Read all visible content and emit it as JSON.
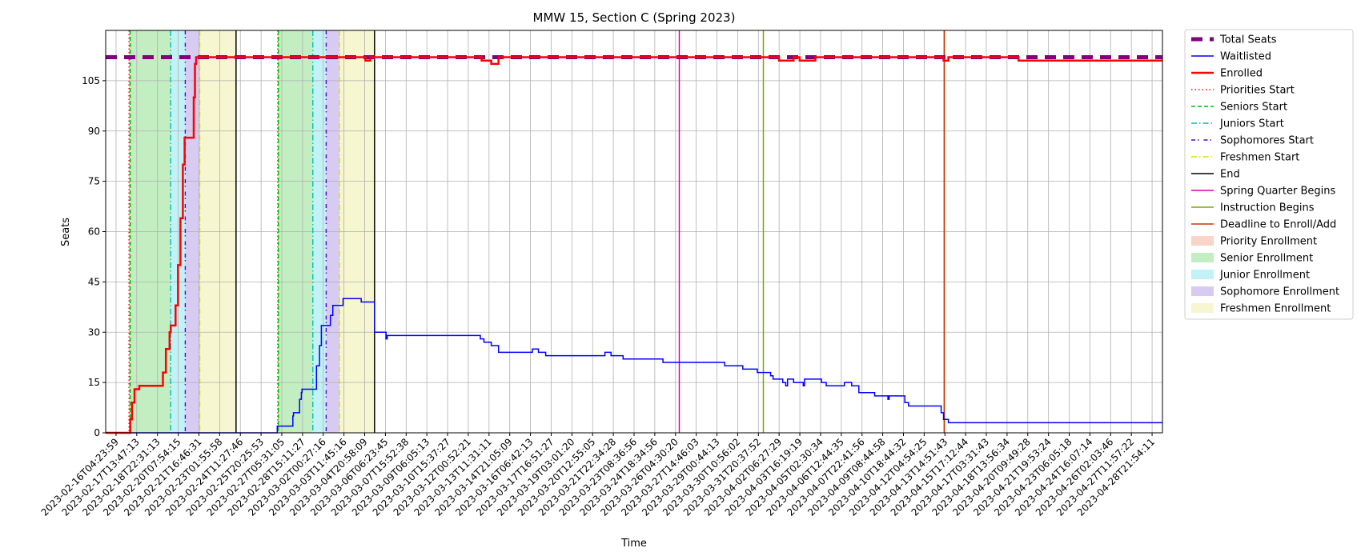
{
  "chart_data": {
    "type": "line",
    "title": "MMW 15, Section C (Spring 2023)",
    "xlabel": "Time",
    "ylabel": "Seats",
    "ylim": [
      0,
      120
    ],
    "yticks": [
      0,
      15,
      30,
      45,
      60,
      75,
      90,
      105
    ],
    "grid": true,
    "legend_position": "outside-right",
    "x_date_range": [
      "2023-02-16T04:23:59",
      "2023-04-29T23:59:00"
    ],
    "x_tick_labels": [
      "2023-02-16T04:23:59",
      "2023-02-17T13:47:13",
      "2023-02-18T22:31:13",
      "2023-02-20T07:54:15",
      "2023-02-21T16:46:31",
      "2023-02-23T01:55:58",
      "2023-02-24T11:27:46",
      "2023-02-25T20:25:53",
      "2023-02-27T05:31:05",
      "2023-02-28T15:11:27",
      "2023-03-02T00:27:16",
      "2023-03-03T11:45:16",
      "2023-03-04T20:58:09",
      "2023-03-06T06:23:45",
      "2023-03-07T15:52:38",
      "2023-03-09T06:05:13",
      "2023-03-10T15:37:27",
      "2023-03-12T00:52:21",
      "2023-03-13T11:31:11",
      "2023-03-14T21:05:09",
      "2023-03-16T06:42:13",
      "2023-03-17T16:51:27",
      "2023-03-19T03:01:20",
      "2023-03-20T12:55:05",
      "2023-03-21T22:34:28",
      "2023-03-23T08:36:56",
      "2023-03-24T18:34:56",
      "2023-03-26T04:30:20",
      "2023-03-27T14:46:03",
      "2023-03-29T00:44:13",
      "2023-03-30T10:56:02",
      "2023-03-31T20:37:52",
      "2023-04-02T06:27:29",
      "2023-04-03T16:19:19",
      "2023-04-05T02:30:34",
      "2023-04-06T12:44:35",
      "2023-04-07T22:41:56",
      "2023-04-09T08:44:58",
      "2023-04-10T18:44:32",
      "2023-04-12T04:54:25",
      "2023-04-13T14:51:43",
      "2023-04-15T17:12:44",
      "2023-04-17T03:31:43",
      "2023-04-18T13:56:34",
      "2023-04-20T09:49:28",
      "2023-04-21T19:53:24",
      "2023-04-23T06:05:18",
      "2023-04-24T16:07:14",
      "2023-04-26T02:03:46",
      "2023-04-27T11:57:22",
      "2023-04-28T21:54:11"
    ],
    "series": [
      {
        "name": "Total Seats",
        "color": "#800080",
        "style": "dashed-thick",
        "points": [
          [
            "2023-02-16T04:23:59",
            112
          ],
          [
            "2023-04-29T23:59:00",
            112
          ]
        ]
      },
      {
        "name": "Waitlisted",
        "color": "#0000ff",
        "style": "solid",
        "points": [
          [
            "2023-02-16T04:23:59",
            0
          ],
          [
            "2023-02-28T00:00:00",
            0
          ],
          [
            "2023-02-28T00:10:00",
            2
          ],
          [
            "2023-02-28T22:00:00",
            2
          ],
          [
            "2023-03-01T02:00:00",
            5
          ],
          [
            "2023-03-01T03:00:00",
            6
          ],
          [
            "2023-03-01T12:00:00",
            6
          ],
          [
            "2023-03-01T13:00:00",
            10
          ],
          [
            "2023-03-01T16:00:00",
            12
          ],
          [
            "2023-03-01T17:00:00",
            13
          ],
          [
            "2023-03-02T16:00:00",
            13
          ],
          [
            "2023-03-02T17:00:00",
            20
          ],
          [
            "2023-03-02T22:00:00",
            26
          ],
          [
            "2023-03-03T01:00:00",
            32
          ],
          [
            "2023-03-03T12:00:00",
            32
          ],
          [
            "2023-03-03T16:00:00",
            35
          ],
          [
            "2023-03-03T20:00:00",
            38
          ],
          [
            "2023-03-04T12:00:00",
            38
          ],
          [
            "2023-03-04T13:00:00",
            40
          ],
          [
            "2023-03-05T18:00:00",
            40
          ],
          [
            "2023-03-05T19:00:00",
            39
          ],
          [
            "2023-03-06T16:00:00",
            39
          ],
          [
            "2023-03-06T17:00:00",
            30
          ],
          [
            "2023-03-07T08:00:00",
            30
          ],
          [
            "2023-03-07T12:00:00",
            28
          ],
          [
            "2023-03-07T14:00:00",
            29
          ],
          [
            "2023-03-13T21:00:00",
            29
          ],
          [
            "2023-03-14T00:00:00",
            28
          ],
          [
            "2023-03-14T06:00:00",
            27
          ],
          [
            "2023-03-14T18:00:00",
            26
          ],
          [
            "2023-03-15T06:00:00",
            24
          ],
          [
            "2023-03-17T12:00:00",
            24
          ],
          [
            "2023-03-17T14:00:00",
            25
          ],
          [
            "2023-03-18T00:00:00",
            24
          ],
          [
            "2023-03-18T12:00:00",
            23
          ],
          [
            "2023-03-22T12:00:00",
            23
          ],
          [
            "2023-03-22T14:00:00",
            24
          ],
          [
            "2023-03-23T00:00:00",
            23
          ],
          [
            "2023-03-23T20:00:00",
            22
          ],
          [
            "2023-03-26T12:00:00",
            22
          ],
          [
            "2023-03-26T14:00:00",
            21
          ],
          [
            "2023-03-30T18:00:00",
            21
          ],
          [
            "2023-03-30T20:00:00",
            20
          ],
          [
            "2023-04-01T00:00:00",
            20
          ],
          [
            "2023-04-01T02:00:00",
            19
          ],
          [
            "2023-04-02T00:00:00",
            19
          ],
          [
            "2023-04-02T02:00:00",
            18
          ],
          [
            "2023-04-03T00:00:00",
            17
          ],
          [
            "2023-04-03T04:00:00",
            16
          ],
          [
            "2023-04-03T20:00:00",
            15
          ],
          [
            "2023-04-04T01:00:00",
            14
          ],
          [
            "2023-04-04T04:00:00",
            16
          ],
          [
            "2023-04-04T14:00:00",
            15
          ],
          [
            "2023-04-05T06:00:00",
            14
          ],
          [
            "2023-04-05T08:00:00",
            16
          ],
          [
            "2023-04-06T12:00:00",
            15
          ],
          [
            "2023-04-06T20:00:00",
            14
          ],
          [
            "2023-04-08T00:00:00",
            14
          ],
          [
            "2023-04-08T02:00:00",
            15
          ],
          [
            "2023-04-08T14:00:00",
            14
          ],
          [
            "2023-04-09T02:00:00",
            12
          ],
          [
            "2023-04-10T02:00:00",
            12
          ],
          [
            "2023-04-10T04:00:00",
            11
          ],
          [
            "2023-04-11T00:00:00",
            11
          ],
          [
            "2023-04-11T02:00:00",
            10
          ],
          [
            "2023-04-11T04:00:00",
            11
          ],
          [
            "2023-04-12T00:00:00",
            11
          ],
          [
            "2023-04-12T06:00:00",
            9
          ],
          [
            "2023-04-12T12:00:00",
            8
          ],
          [
            "2023-04-14T12:00:00",
            8
          ],
          [
            "2023-04-14T18:00:00",
            6
          ],
          [
            "2023-04-14T22:00:00",
            4
          ],
          [
            "2023-04-15T06:00:00",
            3
          ],
          [
            "2023-04-29T23:59:00",
            3
          ]
        ]
      },
      {
        "name": "Enrolled",
        "color": "#ff0000",
        "style": "solid-thick",
        "points": [
          [
            "2023-02-16T04:23:59",
            0
          ],
          [
            "2023-02-17T20:00:00",
            0
          ],
          [
            "2023-02-17T21:00:00",
            4
          ],
          [
            "2023-02-18T00:00:00",
            9
          ],
          [
            "2023-02-18T04:00:00",
            13
          ],
          [
            "2023-02-18T12:00:00",
            14
          ],
          [
            "2023-02-20T00:00:00",
            14
          ],
          [
            "2023-02-20T03:00:00",
            18
          ],
          [
            "2023-02-20T08:00:00",
            25
          ],
          [
            "2023-02-20T14:00:00",
            30
          ],
          [
            "2023-02-20T16:00:00",
            32
          ],
          [
            "2023-02-20T22:00:00",
            32
          ],
          [
            "2023-02-21T00:00:00",
            38
          ],
          [
            "2023-02-21T04:00:00",
            50
          ],
          [
            "2023-02-21T08:00:00",
            64
          ],
          [
            "2023-02-21T12:00:00",
            80
          ],
          [
            "2023-02-21T15:00:00",
            88
          ],
          [
            "2023-02-22T04:00:00",
            88
          ],
          [
            "2023-02-22T06:00:00",
            100
          ],
          [
            "2023-02-22T08:00:00",
            110
          ],
          [
            "2023-02-22T10:00:00",
            112
          ],
          [
            "2023-03-06T00:00:00",
            112
          ],
          [
            "2023-03-06T02:00:00",
            111
          ],
          [
            "2023-03-06T10:00:00",
            112
          ],
          [
            "2023-03-14T00:00:00",
            112
          ],
          [
            "2023-03-14T02:00:00",
            111
          ],
          [
            "2023-03-14T16:00:00",
            111
          ],
          [
            "2023-03-14T18:00:00",
            110
          ],
          [
            "2023-03-15T06:00:00",
            112
          ],
          [
            "2023-04-03T12:00:00",
            112
          ],
          [
            "2023-04-03T14:00:00",
            111
          ],
          [
            "2023-04-04T14:00:00",
            112
          ],
          [
            "2023-04-05T00:00:00",
            111
          ],
          [
            "2023-04-06T00:00:00",
            111
          ],
          [
            "2023-04-06T02:00:00",
            112
          ],
          [
            "2023-04-14T20:00:00",
            112
          ],
          [
            "2023-04-14T22:00:00",
            111
          ],
          [
            "2023-04-15T06:00:00",
            112
          ],
          [
            "2023-04-20T00:00:00",
            112
          ],
          [
            "2023-04-20T02:00:00",
            111
          ],
          [
            "2023-04-29T23:59:00",
            111
          ]
        ]
      }
    ],
    "vertical_markers": [
      {
        "name": "Priorities Start",
        "color": "#ff0000",
        "style": "dotted",
        "x": [
          "2023-02-17T19:00:00",
          "2023-02-28T01:00:00"
        ]
      },
      {
        "name": "Seniors Start",
        "color": "#00bb00",
        "style": "dashed",
        "x": [
          "2023-02-17T21:00:00",
          "2023-02-28T02:00:00"
        ]
      },
      {
        "name": "Juniors Start",
        "color": "#00bfbf",
        "style": "dashdot",
        "x": [
          "2023-02-20T16:00:00",
          "2023-03-02T11:00:00"
        ]
      },
      {
        "name": "Sophomores Start",
        "color": "#5500dd",
        "style": "dashdot-dense",
        "x": [
          "2023-02-21T16:00:00",
          "2023-03-03T09:00:00"
        ]
      },
      {
        "name": "Freshmen Start",
        "color": "#dddd00",
        "style": "dashdot",
        "x": [
          "2023-02-22T16:00:00",
          "2023-03-04T07:00:00"
        ]
      },
      {
        "name": "End",
        "color": "#000000",
        "style": "solid",
        "x": [
          "2023-02-25T04:00:00",
          "2023-03-06T17:00:00"
        ]
      },
      {
        "name": "Spring Quarter Begins",
        "color": "#dd00aa",
        "style": "solid",
        "x": [
          "2023-03-27T17:00:00"
        ]
      },
      {
        "name": "Instruction Begins",
        "color": "#77aa00",
        "style": "solid",
        "x": [
          "2023-04-02T12:00:00"
        ]
      },
      {
        "name": "Deadline to Enroll/Add",
        "color": "#cc3300",
        "style": "solid",
        "x": [
          "2023-04-14T23:00:00"
        ]
      }
    ],
    "spans": [
      {
        "name": "Priority Enrollment",
        "color": "#f4b09a",
        "ranges": [
          [
            "2023-02-17T19:00:00",
            "2023-02-17T21:00:00"
          ],
          [
            "2023-02-28T01:00:00",
            "2023-02-28T02:00:00"
          ]
        ]
      },
      {
        "name": "Senior Enrollment",
        "color": "#90e090",
        "ranges": [
          [
            "2023-02-17T21:00:00",
            "2023-02-20T16:00:00"
          ],
          [
            "2023-02-28T02:00:00",
            "2023-03-02T11:00:00"
          ]
        ]
      },
      {
        "name": "Junior Enrollment",
        "color": "#90e8ee",
        "ranges": [
          [
            "2023-02-20T16:00:00",
            "2023-02-21T16:00:00"
          ],
          [
            "2023-03-02T11:00:00",
            "2023-03-03T09:00:00"
          ]
        ]
      },
      {
        "name": "Sophomore Enrollment",
        "color": "#b7a0e6",
        "ranges": [
          [
            "2023-02-21T16:00:00",
            "2023-02-22T16:00:00"
          ],
          [
            "2023-03-03T09:00:00",
            "2023-03-04T07:00:00"
          ]
        ]
      },
      {
        "name": "Freshmen Enrollment",
        "color": "#eeeeaa",
        "ranges": [
          [
            "2023-02-22T16:00:00",
            "2023-02-25T04:00:00"
          ],
          [
            "2023-03-04T07:00:00",
            "2023-03-06T17:00:00"
          ]
        ]
      }
    ],
    "legend": [
      "Total Seats",
      "Waitlisted",
      "Enrolled",
      "Priorities Start",
      "Seniors Start",
      "Juniors Start",
      "Sophomores Start",
      "Freshmen Start",
      "End",
      "Spring Quarter Begins",
      "Instruction Begins",
      "Deadline to Enroll/Add",
      "Priority Enrollment",
      "Senior Enrollment",
      "Junior Enrollment",
      "Sophomore Enrollment",
      "Freshmen Enrollment"
    ]
  }
}
